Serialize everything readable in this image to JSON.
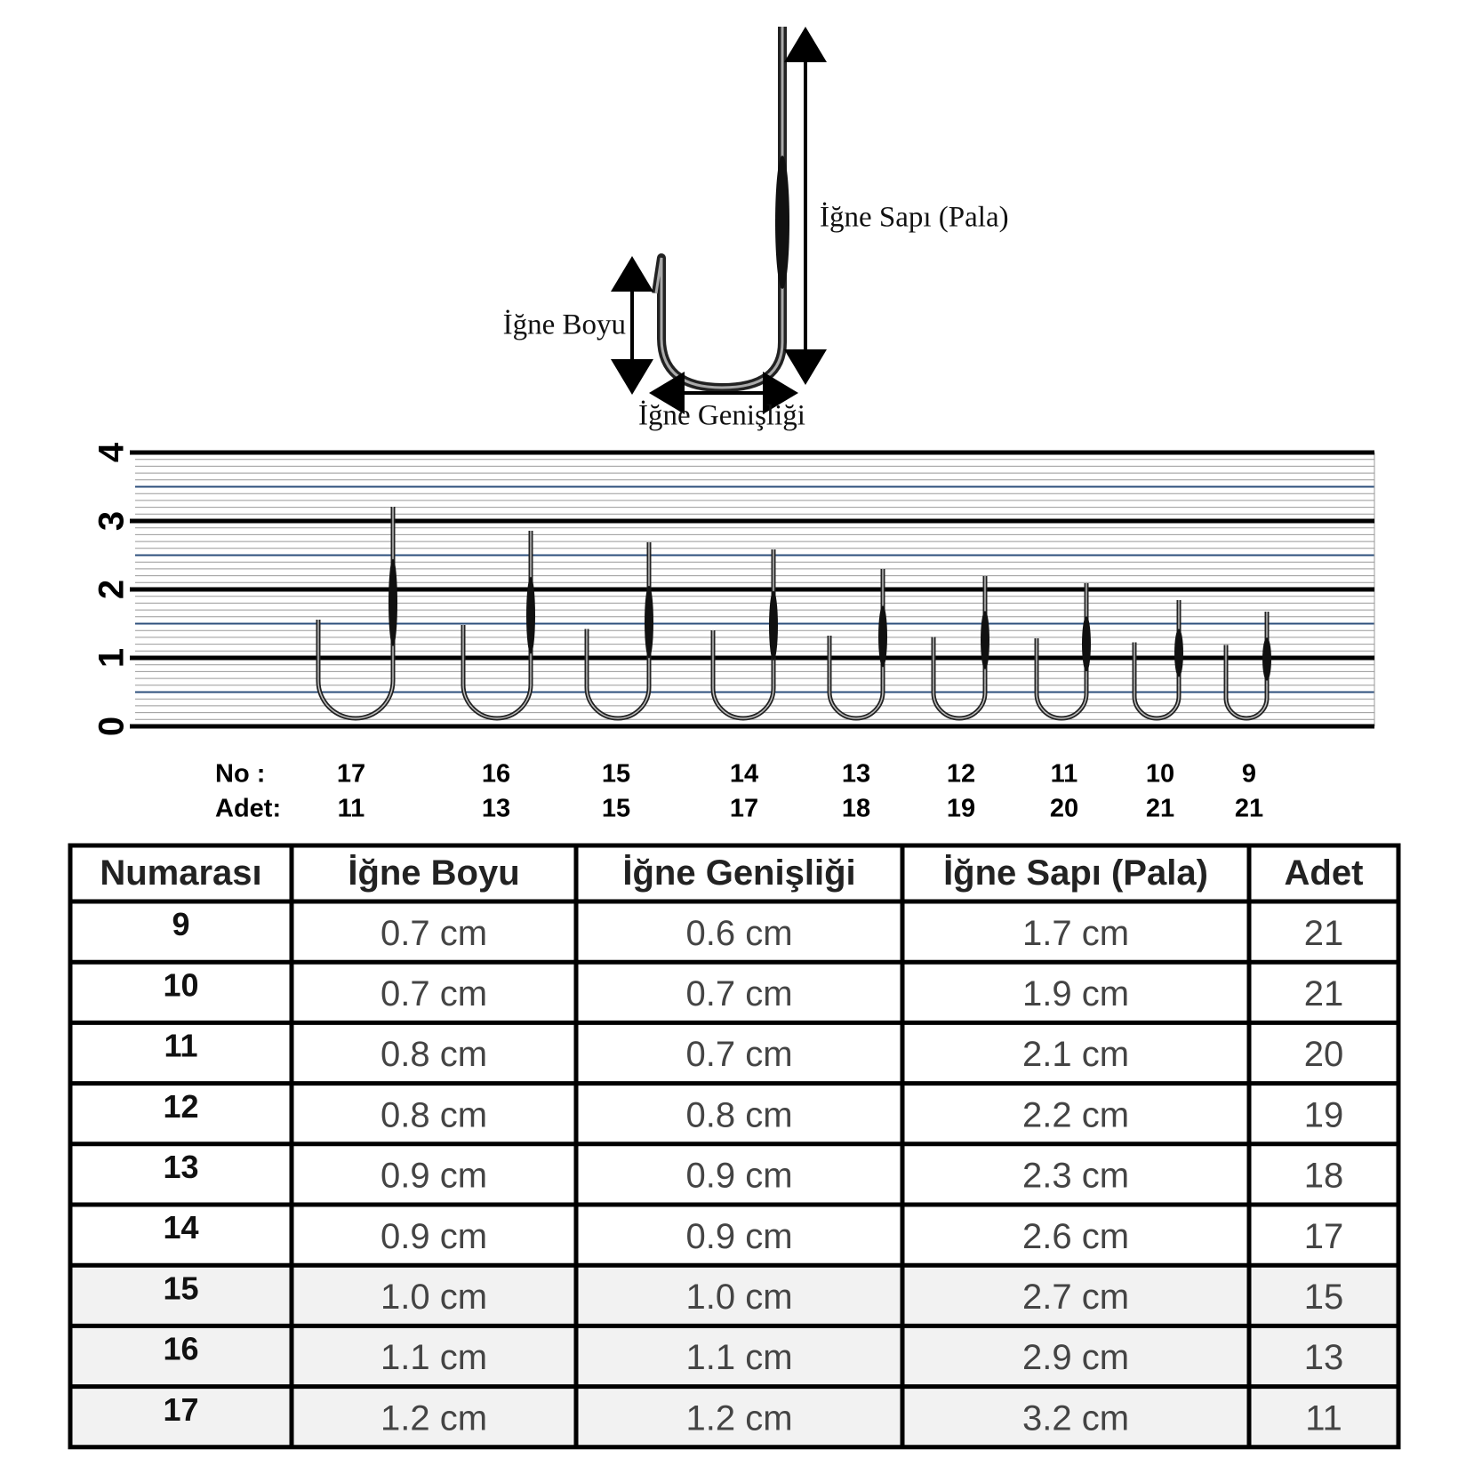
{
  "diagram": {
    "shank_label": "İğne Sapı (Pala)",
    "length_label": "İğne Boyu",
    "width_label": "İğne Genişliği"
  },
  "ruler": {
    "ticks": [
      0,
      1,
      2,
      3,
      4
    ]
  },
  "hook_row": {
    "no_label": "No  :",
    "count_label": "Adet:",
    "numbers": [
      "17",
      "16",
      "15",
      "14",
      "13",
      "12",
      "11",
      "10",
      "9"
    ],
    "counts": [
      "11",
      "13",
      "15",
      "17",
      "18",
      "19",
      "20",
      "21",
      "21"
    ]
  },
  "table": {
    "header": [
      "Numarası",
      "İğne Boyu",
      "İğne Genişliği",
      "İğne Sapı (Pala)",
      "Adet"
    ],
    "rows": [
      [
        "9",
        "0.7 cm",
        "0.6 cm",
        "1.7 cm",
        "21"
      ],
      [
        "10",
        "0.7 cm",
        "0.7 cm",
        "1.9 cm",
        "21"
      ],
      [
        "11",
        "0.8 cm",
        "0.7 cm",
        "2.1 cm",
        "20"
      ],
      [
        "12",
        "0.8 cm",
        "0.8 cm",
        "2.2 cm",
        "19"
      ],
      [
        "13",
        "0.9 cm",
        "0.9 cm",
        "2.3 cm",
        "18"
      ],
      [
        "14",
        "0.9 cm",
        "0.9 cm",
        "2.6 cm",
        "17"
      ],
      [
        "15",
        "1.0 cm",
        "1.0 cm",
        "2.7 cm",
        "15"
      ],
      [
        "16",
        "1.1 cm",
        "1.1 cm",
        "2.9 cm",
        "13"
      ],
      [
        "17",
        "1.2 cm",
        "1.2 cm",
        "3.2 cm",
        "11"
      ]
    ]
  }
}
